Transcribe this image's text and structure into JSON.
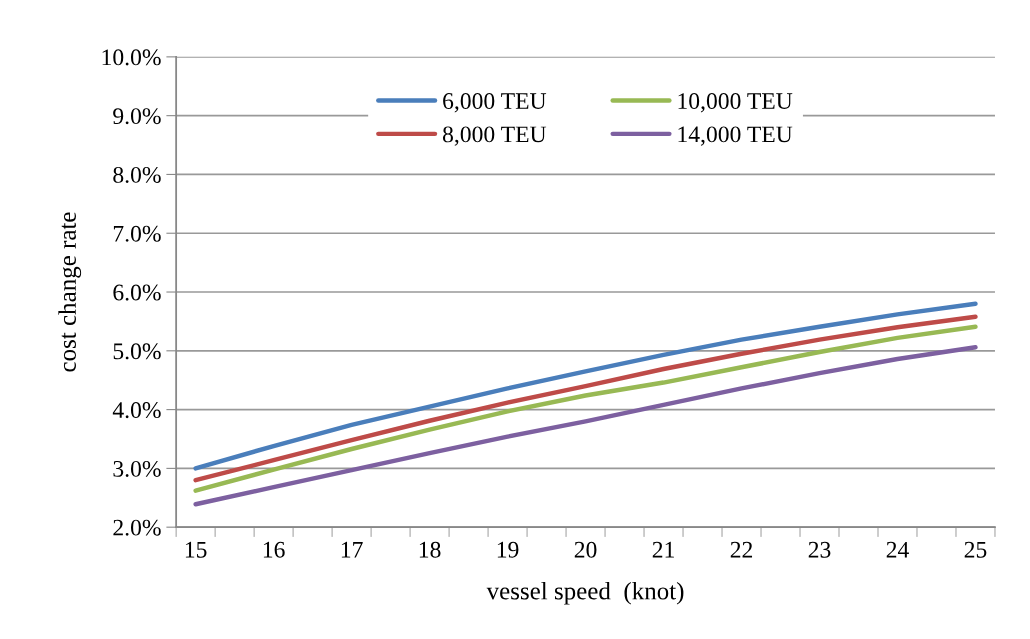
{
  "chart_data": {
    "type": "line",
    "xlabel": "vessel speed  (knot)",
    "ylabel": "cost change rate",
    "x": [
      15,
      16,
      17,
      18,
      19,
      20,
      21,
      22,
      23,
      24,
      25
    ],
    "series": [
      {
        "name": "6,000 TEU",
        "color": "#4a7ebb",
        "values": [
          3.0,
          3.38,
          3.74,
          4.05,
          4.36,
          4.65,
          4.93,
          5.19,
          5.41,
          5.62,
          5.8
        ]
      },
      {
        "name": "8,000 TEU",
        "color": "#be4b48",
        "values": [
          2.8,
          3.14,
          3.48,
          3.81,
          4.12,
          4.4,
          4.69,
          4.95,
          5.19,
          5.4,
          5.58
        ]
      },
      {
        "name": "10,000 TEU",
        "color": "#98b954",
        "values": [
          2.62,
          2.98,
          3.33,
          3.66,
          3.97,
          4.24,
          4.46,
          4.72,
          4.98,
          5.22,
          5.41
        ]
      },
      {
        "name": "14,000 TEU",
        "color": "#7d60a0",
        "values": [
          2.39,
          2.68,
          2.97,
          3.26,
          3.54,
          3.8,
          4.08,
          4.36,
          4.62,
          4.86,
          5.06
        ]
      }
    ],
    "xlim": [
      14.75,
      25.25
    ],
    "xticks": [
      15,
      16,
      17,
      18,
      19,
      20,
      21,
      22,
      23,
      24,
      25
    ],
    "ylim": [
      2,
      10
    ],
    "yticks": [
      {
        "value": 2,
        "label": "2.0%"
      },
      {
        "value": 3,
        "label": "3.0%"
      },
      {
        "value": 4,
        "label": "4.0%"
      },
      {
        "value": 5,
        "label": "5.0%"
      },
      {
        "value": 6,
        "label": "6.0%"
      },
      {
        "value": 7,
        "label": "7.0%"
      },
      {
        "value": 8,
        "label": "8.0%"
      },
      {
        "value": 9,
        "label": "9.0%"
      },
      {
        "value": 10,
        "label": "10.0%"
      }
    ],
    "grid": "y",
    "legend": "top",
    "marker": "none",
    "line_style": "solid"
  }
}
